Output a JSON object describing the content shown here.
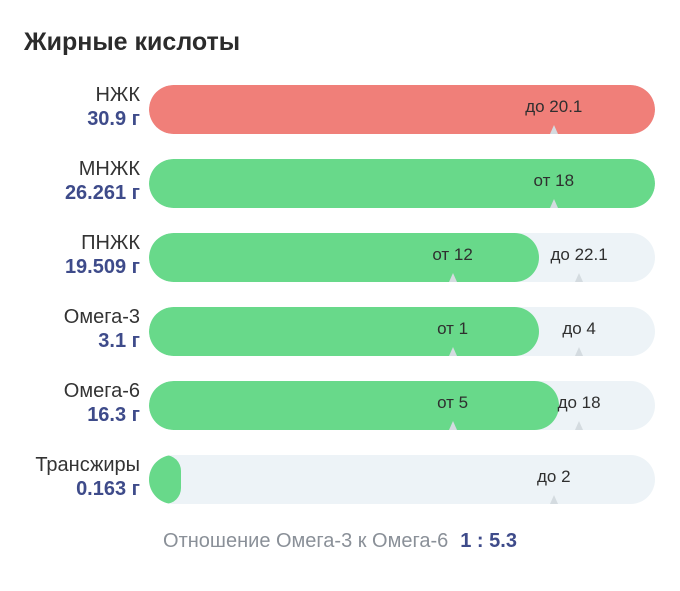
{
  "title": "Жирные кислоты",
  "colors": {
    "over": "#f07f79",
    "ok": "#68d98a",
    "track": "#edf3f7",
    "value_text": "#3e4b8a"
  },
  "rows": [
    {
      "name": "НЖК",
      "value": "30.9 г",
      "fill_fraction": 1.0,
      "fill_color": "#f07f79",
      "markers": [
        {
          "label": "до 20.1",
          "position": 0.8
        }
      ]
    },
    {
      "name": "МНЖК",
      "value": "26.261 г",
      "fill_fraction": 1.0,
      "fill_color": "#68d98a",
      "markers": [
        {
          "label": "от 18",
          "position": 0.8
        }
      ]
    },
    {
      "name": "ПНЖК",
      "value": "19.509 г",
      "fill_fraction": 0.77,
      "fill_color": "#68d98a",
      "markers": [
        {
          "label": "от 12",
          "position": 0.6
        },
        {
          "label": "до 22.1",
          "position": 0.85
        }
      ]
    },
    {
      "name": "Омега-3",
      "value": "3.1 г",
      "fill_fraction": 0.77,
      "fill_color": "#68d98a",
      "markers": [
        {
          "label": "от 1",
          "position": 0.6
        },
        {
          "label": "до 4",
          "position": 0.85
        }
      ]
    },
    {
      "name": "Омега-6",
      "value": "16.3 г",
      "fill_fraction": 0.81,
      "fill_color": "#68d98a",
      "markers": [
        {
          "label": "от 5",
          "position": 0.6
        },
        {
          "label": "до 18",
          "position": 0.85
        }
      ]
    },
    {
      "name": "Трансжиры",
      "value": "0.163 г",
      "fill_fraction": 0.06,
      "fill_color": "#68d98a",
      "markers": [
        {
          "label": "до 2",
          "position": 0.8
        }
      ]
    }
  ],
  "ratio": {
    "label": "Отношение Омега-3 к Омега-6",
    "value": "1 : 5.3"
  }
}
